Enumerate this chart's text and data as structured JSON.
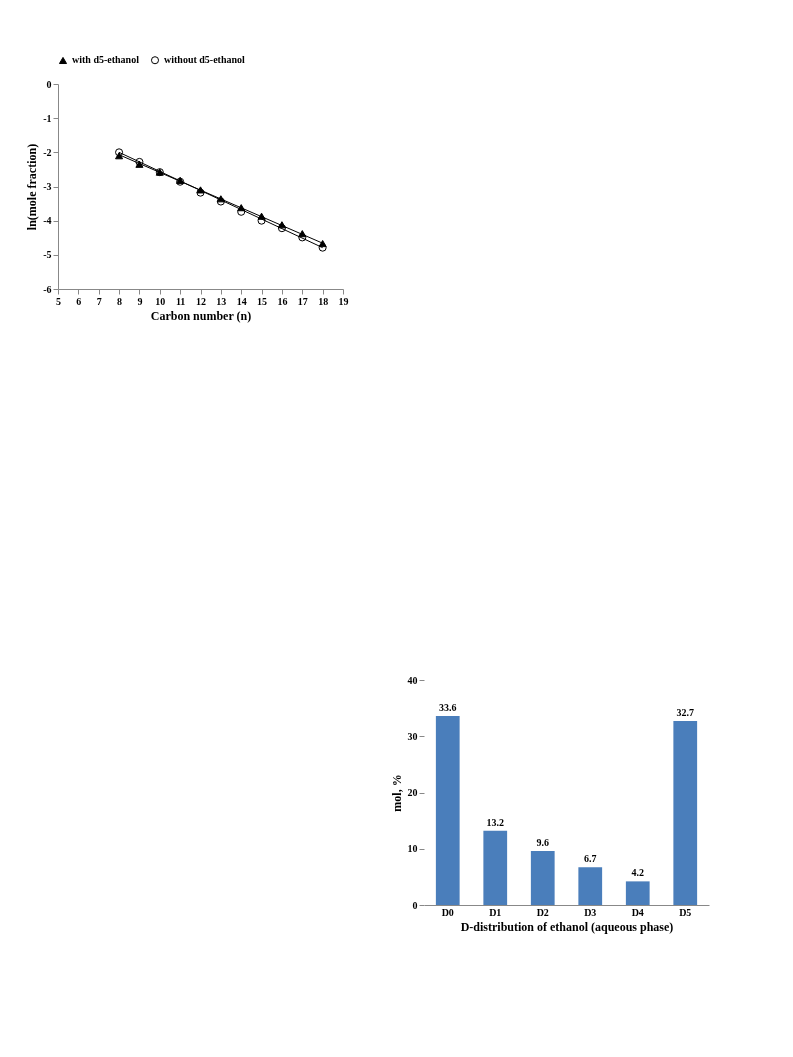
{
  "chart_data": [
    {
      "type": "scatter",
      "xlabel": "Carbon number (n)",
      "ylabel": "ln(mole fraction)",
      "xlim": [
        5,
        19
      ],
      "xticks": [
        5,
        6,
        7,
        8,
        9,
        10,
        11,
        12,
        13,
        14,
        15,
        16,
        17,
        18,
        19
      ],
      "ylim": [
        -6,
        0
      ],
      "yticks": [
        -6,
        -5,
        -4,
        -3,
        -2,
        -1,
        0
      ],
      "grid": false,
      "legend": "top",
      "series": [
        {
          "name": "with d5-ethanol",
          "type": "scatter",
          "marker": "triangle",
          "color": "#000000",
          "x": [
            8,
            9,
            10,
            11,
            12,
            13,
            14,
            15,
            16,
            17,
            18
          ],
          "values": [
            -2.1,
            -2.35,
            -2.58,
            -2.82,
            -3.1,
            -3.36,
            -3.62,
            -3.87,
            -4.12,
            -4.38,
            -4.67
          ]
        },
        {
          "name": "without d5-ethanol",
          "type": "scatter",
          "marker": "circle",
          "color": "#000000",
          "x": [
            8,
            9,
            10,
            11,
            12,
            13,
            14,
            15,
            16,
            17,
            18
          ],
          "values": [
            -2.0,
            -2.28,
            -2.58,
            -2.86,
            -3.18,
            -3.44,
            -3.74,
            -4.0,
            -4.22,
            -4.49,
            -4.79
          ]
        },
        {
          "type": "line",
          "color": "#000000",
          "x": [
            8,
            18
          ],
          "values": [
            -2.07,
            -4.66
          ]
        },
        {
          "type": "line",
          "color": "#000000",
          "x": [
            8,
            18
          ],
          "values": [
            -2.0,
            -4.79
          ]
        }
      ]
    },
    {
      "type": "bar",
      "xlabel": "D-distribution of ethanol (aqueous phase)",
      "ylabel": "mol, %",
      "categories": [
        "D0",
        "D1",
        "D2",
        "D3",
        "D4",
        "D5"
      ],
      "values": [
        33.6,
        13.2,
        9.6,
        6.7,
        4.2,
        32.7
      ],
      "color": "#4a7ebb",
      "ylim": [
        0,
        40
      ],
      "yticks": [
        0,
        10,
        20,
        30,
        40
      ],
      "grid": false,
      "data_labels": true
    }
  ]
}
